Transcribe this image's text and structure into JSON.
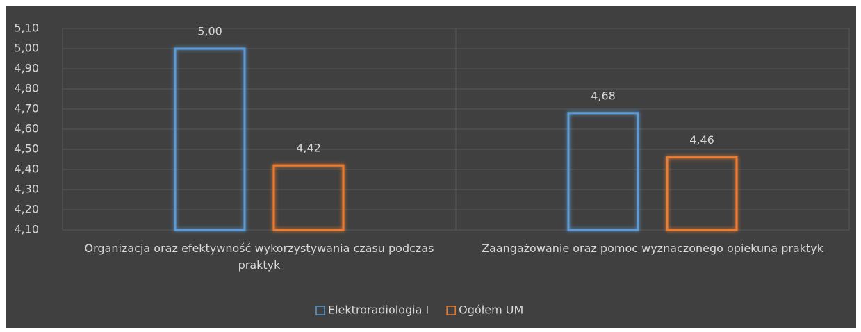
{
  "chart_data": {
    "type": "bar",
    "categories": [
      "Organizacja oraz efektywność wykorzystywania czasu podczas praktyk",
      "Zaangażowanie oraz pomoc wyznaczonego opiekuna praktyk"
    ],
    "series": [
      {
        "name": "Elektroradiologia I",
        "color": "#5b9bd5",
        "values": [
          5.0,
          4.68
        ],
        "value_labels": [
          "5,00",
          "4,68"
        ]
      },
      {
        "name": "Ogółem UM",
        "color": "#ed7d31",
        "values": [
          4.42,
          4.46
        ],
        "value_labels": [
          "4,42",
          "4,46"
        ]
      }
    ],
    "ylim": [
      4.1,
      5.1
    ],
    "yticks": [
      {
        "value": 4.1,
        "label": "4,10"
      },
      {
        "value": 4.2,
        "label": "4,20"
      },
      {
        "value": 4.3,
        "label": "4,30"
      },
      {
        "value": 4.4,
        "label": "4,40"
      },
      {
        "value": 4.5,
        "label": "4,50"
      },
      {
        "value": 4.6,
        "label": "4,60"
      },
      {
        "value": 4.7,
        "label": "4,70"
      },
      {
        "value": 4.8,
        "label": "4,80"
      },
      {
        "value": 4.9,
        "label": "4,90"
      },
      {
        "value": 5.0,
        "label": "5,00"
      },
      {
        "value": 5.1,
        "label": "5,10"
      }
    ],
    "grid": true,
    "legend": "bottom"
  }
}
